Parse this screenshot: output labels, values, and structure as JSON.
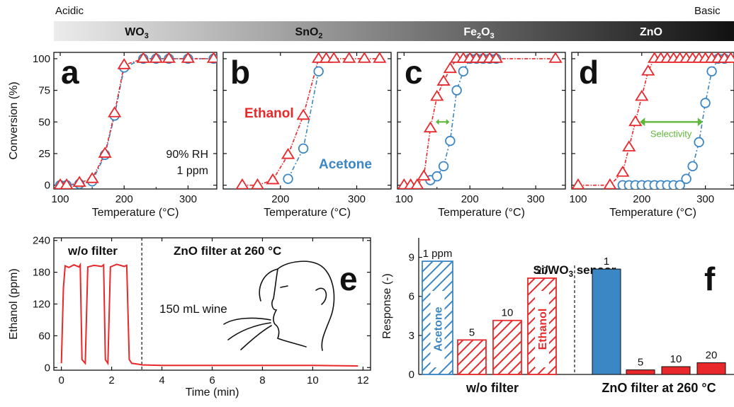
{
  "header": {
    "left_label": "Acidic",
    "right_label": "Basic",
    "materials": [
      {
        "base": "WO",
        "sub": "3"
      },
      {
        "base": "SnO",
        "sub": "2"
      },
      {
        "base": "Fe",
        "sub": "2",
        "mid": "O",
        "sub2": "3"
      },
      {
        "base": "ZnO",
        "sub": ""
      }
    ]
  },
  "colors": {
    "ethanol": "#e8282b",
    "acetone": "#3b86c4",
    "selectivity": "#5fb63a"
  },
  "chart_data": [
    {
      "panel": "a",
      "type": "line",
      "material": "WO3",
      "xlabel": "Temperature (°C)",
      "ylabel": "Conversion (%)",
      "xlim": [
        90,
        345
      ],
      "ylim": [
        -3,
        105
      ],
      "xticks": [
        100,
        200,
        300
      ],
      "yticks": [
        0,
        25,
        50,
        75,
        100
      ],
      "annotations": [
        "90% RH",
        "1 ppm"
      ],
      "series": [
        {
          "marker": "triangle",
          "color": "#e8282b",
          "x": [
            100,
            110,
            130,
            150,
            170,
            185,
            200,
            230,
            250,
            270,
            300,
            340
          ],
          "y": [
            0,
            0,
            2,
            5,
            25,
            57,
            95,
            100,
            100,
            100,
            100,
            100
          ]
        },
        {
          "marker": "circle",
          "color": "#3b86c4",
          "x": [
            100,
            110,
            130,
            150,
            170,
            185,
            200,
            230,
            250,
            270,
            300,
            340
          ],
          "y": [
            0,
            0,
            1,
            3,
            24,
            55,
            93,
            100,
            100,
            100,
            100,
            100
          ]
        }
      ]
    },
    {
      "panel": "b",
      "type": "line",
      "material": "SnO2",
      "xlabel": "Temperature (°C)",
      "xlim": [
        125,
        345
      ],
      "ylim": [
        -3,
        105
      ],
      "xticks": [
        100,
        200,
        300
      ],
      "yticks": [
        0,
        25,
        50,
        75,
        100
      ],
      "series": [
        {
          "name": "Ethanol",
          "marker": "triangle",
          "color": "#e8282b",
          "x": [
            150,
            170,
            190,
            210,
            230,
            250,
            260,
            270,
            290,
            310,
            330
          ],
          "y": [
            0,
            0,
            4,
            24,
            55,
            100,
            100,
            100,
            100,
            100,
            100
          ]
        },
        {
          "name": "Acetone",
          "marker": "circle",
          "color": "#3b86c4",
          "x": [
            210,
            230,
            250
          ],
          "y": [
            5,
            29,
            90
          ]
        }
      ]
    },
    {
      "panel": "c",
      "type": "line",
      "material": "Fe2O3",
      "xlabel": "Temperature (°C)",
      "xlim": [
        90,
        345
      ],
      "ylim": [
        -3,
        105
      ],
      "xticks": [
        100,
        200,
        300
      ],
      "yticks": [
        0,
        25,
        50,
        75,
        100
      ],
      "annotations": [
        "Selectivity arrow"
      ],
      "series": [
        {
          "marker": "triangle",
          "color": "#e8282b",
          "x": [
            100,
            110,
            120,
            130,
            140,
            150,
            160,
            170,
            180,
            190,
            200,
            210,
            220,
            230,
            240,
            330
          ],
          "y": [
            0,
            0,
            0,
            7,
            45,
            70,
            82,
            92,
            100,
            100,
            100,
            100,
            100,
            100,
            100,
            100
          ]
        },
        {
          "marker": "circle",
          "color": "#3b86c4",
          "x": [
            140,
            150,
            160,
            170,
            180,
            190,
            200,
            210,
            220,
            230,
            240
          ],
          "y": [
            4,
            7,
            15,
            35,
            75,
            90,
            100,
            100,
            100,
            100,
            100
          ]
        }
      ]
    },
    {
      "panel": "d",
      "type": "line",
      "material": "ZnO",
      "xlabel": "Temperature (°C)",
      "xlim": [
        90,
        345
      ],
      "ylim": [
        -3,
        105
      ],
      "xticks": [
        100,
        200,
        300
      ],
      "yticks": [
        0,
        25,
        50,
        75,
        100
      ],
      "annotations": [
        "Selectivity"
      ],
      "series": [
        {
          "marker": "triangle",
          "color": "#e8282b",
          "x": [
            100,
            150,
            170,
            180,
            190,
            200,
            210,
            220,
            230,
            240,
            250,
            260,
            270,
            280,
            290,
            300,
            310,
            320,
            330,
            340
          ],
          "y": [
            0,
            0,
            10,
            30,
            50,
            70,
            90,
            100,
            100,
            100,
            100,
            100,
            100,
            100,
            100,
            100,
            100,
            100,
            100,
            100
          ]
        },
        {
          "marker": "circle",
          "color": "#3b86c4",
          "x": [
            170,
            180,
            190,
            200,
            210,
            220,
            230,
            240,
            250,
            260,
            270,
            280,
            290,
            300,
            310,
            320,
            330
          ],
          "y": [
            0,
            0,
            0,
            0,
            0,
            0,
            0,
            0,
            0,
            0,
            5,
            15,
            34,
            65,
            90,
            100,
            100
          ]
        }
      ]
    },
    {
      "panel": "e",
      "type": "line",
      "xlabel": "Time (min)",
      "ylabel": "Ethanol (ppm)",
      "xlim": [
        -0.3,
        12.3
      ],
      "ylim": [
        -5,
        245
      ],
      "xticks": [
        0,
        2,
        4,
        6,
        8,
        10,
        12
      ],
      "yticks": [
        0,
        60,
        120,
        180,
        240
      ],
      "annotations": [
        "w/o filter",
        "ZnO filter at 260 °C",
        "150 mL wine"
      ],
      "series": [
        {
          "color": "#e8282b",
          "x": [
            0.0,
            0.08,
            0.15,
            0.3,
            0.5,
            0.7,
            0.75,
            0.82,
            0.95,
            1.05,
            1.3,
            1.6,
            1.68,
            1.75,
            1.85,
            1.95,
            2.2,
            2.5,
            2.6,
            2.7,
            2.8,
            3.1,
            3.2,
            4,
            6,
            8,
            10,
            11.8
          ],
          "y": [
            8,
            150,
            192,
            189,
            194,
            190,
            194,
            15,
            8,
            190,
            193,
            191,
            194,
            15,
            8,
            190,
            195,
            191,
            193,
            15,
            8,
            6,
            5,
            4,
            4,
            4,
            4,
            3
          ]
        }
      ]
    },
    {
      "panel": "f",
      "type": "bar",
      "title": "Si/WO3 sensor",
      "ylabel": "Response (-)",
      "ylim": [
        0,
        10.5
      ],
      "yticks": [
        0,
        3,
        6,
        9
      ],
      "groups": [
        "w/o filter",
        "ZnO filter at 260 °C"
      ],
      "bars": [
        {
          "group": "w/o filter",
          "label": "1 ppm",
          "inner": "Acetone",
          "value": 8.7,
          "color": "#3b86c4",
          "fill": "hatched"
        },
        {
          "group": "w/o filter",
          "label": "5",
          "value": 2.65,
          "color": "#e8282b",
          "fill": "hatched"
        },
        {
          "group": "w/o filter",
          "label": "10",
          "value": 4.15,
          "color": "#e8282b",
          "fill": "hatched"
        },
        {
          "group": "w/o filter",
          "label": "20",
          "inner": "Ethanol",
          "value": 7.4,
          "color": "#e8282b",
          "fill": "hatched"
        },
        {
          "group": "ZnO filter at 260 °C",
          "label": "1",
          "value": 8.1,
          "color": "#3b86c4",
          "fill": "solid"
        },
        {
          "group": "ZnO filter at 260 °C",
          "label": "5",
          "value": 0.35,
          "color": "#e8282b",
          "fill": "solid"
        },
        {
          "group": "ZnO filter at 260 °C",
          "label": "10",
          "value": 0.6,
          "color": "#e8282b",
          "fill": "solid"
        },
        {
          "group": "ZnO filter at 260 °C",
          "label": "20",
          "value": 0.9,
          "color": "#e8282b",
          "fill": "solid"
        }
      ]
    }
  ],
  "labels": {
    "panel_letters": [
      "a",
      "b",
      "c",
      "d",
      "e",
      "f"
    ],
    "a_annot1": "90% RH",
    "a_annot2": "1 ppm",
    "b_ethanol": "Ethanol",
    "b_acetone": "Acetone",
    "d_selectivity": "Selectivity",
    "e_wo": "w/o filter",
    "e_zno": "ZnO filter at 260 °C",
    "e_wine": "150 mL wine",
    "f_title_base": "Si/WO",
    "f_title_sub": "3",
    "f_title_end": " sensor",
    "f_group1": "w/o filter",
    "f_group2": "ZnO filter at 260 °C"
  }
}
